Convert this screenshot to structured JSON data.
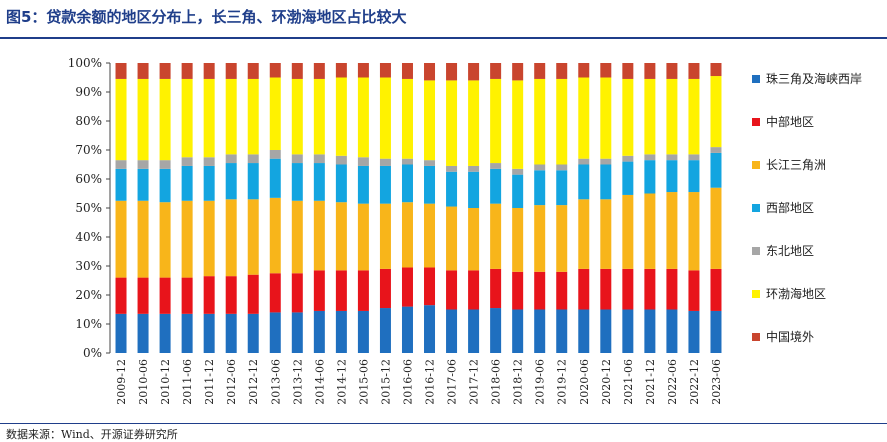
{
  "title": "图5：贷款余额的地区分布上，长三角、环渤海地区占比较大",
  "source": "数据来源：Wind、开源证券研究所",
  "chart_data": {
    "type": "bar",
    "stacked": true,
    "categories": [
      "2009-12",
      "2010-06",
      "2010-12",
      "2011-06",
      "2011-12",
      "2012-06",
      "2012-12",
      "2013-06",
      "2013-12",
      "2014-06",
      "2014-12",
      "2015-06",
      "2015-12",
      "2016-06",
      "2016-12",
      "2017-06",
      "2017-12",
      "2018-06",
      "2018-12",
      "2019-06",
      "2019-12",
      "2020-06",
      "2020-12",
      "2021-06",
      "2021-12",
      "2022-06",
      "2022-12",
      "2023-06"
    ],
    "yticks": [
      "0%",
      "10%",
      "20%",
      "30%",
      "40%",
      "50%",
      "60%",
      "70%",
      "80%",
      "90%",
      "100%"
    ],
    "ylim": [
      0,
      100
    ],
    "legend_position": "right",
    "series": [
      {
        "name": "珠三角及海峡西岸",
        "color": "#1f6fbf",
        "values": [
          13.5,
          13.5,
          13.5,
          13.5,
          13.5,
          13.5,
          13.5,
          14,
          14,
          14.5,
          14.5,
          14.5,
          15.5,
          16,
          16.5,
          15,
          15,
          15.5,
          15,
          15,
          15,
          15,
          15,
          15,
          15,
          15,
          14.5,
          14.5
        ]
      },
      {
        "name": "中部地区",
        "color": "#e8141b",
        "values": [
          12.5,
          12.5,
          12.5,
          12.5,
          13,
          13,
          13.5,
          13.5,
          13.5,
          14,
          14,
          14,
          13.5,
          13.5,
          13,
          13.5,
          13.5,
          13.5,
          13,
          13,
          13,
          14,
          14,
          14,
          14,
          14,
          14,
          14.5
        ]
      },
      {
        "name": "长江三角洲",
        "color": "#f8b51a",
        "values": [
          26.5,
          26.5,
          26,
          26.5,
          26,
          26.5,
          26,
          26,
          25,
          24,
          23.5,
          23,
          22.5,
          22.5,
          22,
          22,
          21.5,
          22.5,
          22,
          23,
          23,
          24,
          24,
          25.5,
          26,
          26.5,
          27,
          28
        ]
      },
      {
        "name": "西部地区",
        "color": "#13a5e0",
        "values": [
          11,
          11,
          11.5,
          12,
          12,
          12.5,
          12.5,
          13.5,
          13,
          13,
          13,
          13,
          13,
          13,
          13,
          12,
          12.5,
          12,
          11.5,
          12,
          12,
          12,
          12,
          11.5,
          11.5,
          11,
          11,
          12
        ]
      },
      {
        "name": "东北地区",
        "color": "#a6a6a6",
        "values": [
          3,
          3,
          3,
          3,
          3,
          3,
          3,
          3,
          3,
          3,
          3,
          3,
          2.5,
          2,
          2,
          2,
          2,
          2,
          2,
          2,
          2,
          2,
          2,
          2,
          2,
          2,
          2,
          2
        ]
      },
      {
        "name": "环渤海地区",
        "color": "#fff200",
        "values": [
          28,
          28,
          28,
          27,
          27,
          26,
          26,
          25,
          26,
          26,
          27,
          27.5,
          28,
          27.5,
          27.5,
          29.5,
          29.5,
          29,
          30.5,
          29.5,
          29.5,
          28,
          28,
          26.5,
          26,
          26,
          26,
          24.5
        ]
      },
      {
        "name": "中国境外",
        "color": "#c9452e",
        "values": [
          5.5,
          5.5,
          5.5,
          5.5,
          5.5,
          5.5,
          5.5,
          5,
          5.5,
          5.5,
          5,
          5,
          5,
          5.5,
          6,
          6,
          6,
          5.5,
          6,
          5.5,
          5.5,
          5,
          5,
          5.5,
          5.5,
          5.5,
          5.5,
          4.5
        ]
      }
    ]
  }
}
